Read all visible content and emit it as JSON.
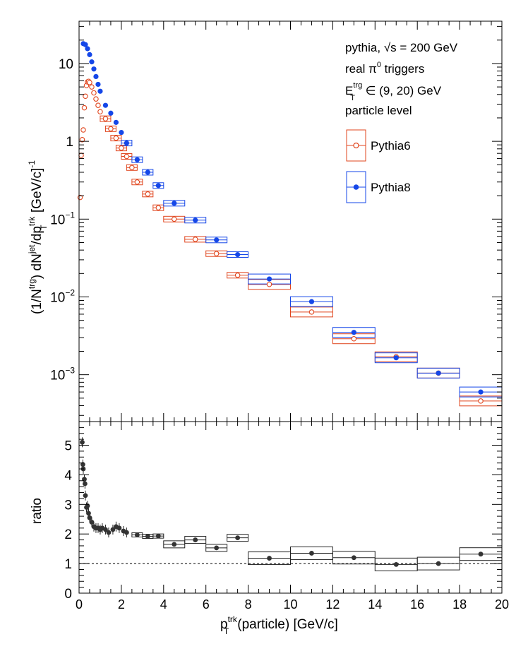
{
  "legend_text": {
    "line1_pre": "pythia, ",
    "line1_sqrt": "√s",
    "line1_post": " = 200 GeV",
    "line2_pre": "real π",
    "line2_sup": "0",
    "line2_post": " triggers",
    "line3_E": "E",
    "line3_sub": "T",
    "line3_sup": "trg",
    "line3_post": " ∈ (9, 20) GeV",
    "line4": "particle level"
  },
  "axis_text": {
    "xlabel_p": "p",
    "xlabel_sup": "trk",
    "xlabel_sub": "T",
    "xlabel_post": "(particle) [GeV/c]",
    "ylabel_top": "(1/N^{trg}) dN^{jet}/dp_{T}^{trk} [GeV/c]^{-1}",
    "ylabel_bottom": "ratio"
  },
  "colors": {
    "pythia6": "#e0441c",
    "pythia8": "#1547e8",
    "ratio": "#333333"
  },
  "chart_data": [
    {
      "type": "scatter",
      "panel": "spectrum",
      "log_y": true,
      "xlim": [
        0,
        20
      ],
      "ylim": [
        0.00025,
        35
      ],
      "y_ticks": [
        {
          "value": 0.001,
          "label": "10",
          "sup": "−3"
        },
        {
          "value": 0.01,
          "label": "10",
          "sup": "−2"
        },
        {
          "value": 0.1,
          "label": "10",
          "sup": "−1"
        },
        {
          "value": 1,
          "label": "1",
          "sup": ""
        },
        {
          "value": 10,
          "label": "10",
          "sup": ""
        }
      ],
      "series": [
        {
          "name": "Pythia6",
          "marker": "open-circle",
          "points": [
            {
              "x": 0.05,
              "y": 0.19,
              "xw": 0.05
            },
            {
              "x": 0.1,
              "y": 0.66,
              "xw": 0.05
            },
            {
              "x": 0.15,
              "y": 1.05,
              "xw": 0.05
            },
            {
              "x": 0.2,
              "y": 1.4,
              "xw": 0.05
            },
            {
              "x": 0.25,
              "y": 2.7,
              "xw": 0.05
            },
            {
              "x": 0.3,
              "y": 3.8,
              "xw": 0.05
            },
            {
              "x": 0.35,
              "y": 5.2,
              "xw": 0.05
            },
            {
              "x": 0.4,
              "y": 5.8,
              "xw": 0.05
            },
            {
              "x": 0.45,
              "y": 5.9,
              "xw": 0.05
            },
            {
              "x": 0.5,
              "y": 5.7,
              "xw": 0.05
            },
            {
              "x": 0.6,
              "y": 5.0,
              "xw": 0.1
            },
            {
              "x": 0.7,
              "y": 4.2,
              "xw": 0.1
            },
            {
              "x": 0.8,
              "y": 3.5,
              "xw": 0.1
            },
            {
              "x": 0.9,
              "y": 2.9,
              "xw": 0.1
            },
            {
              "x": 1.0,
              "y": 2.4,
              "xw": 0.1
            },
            {
              "x": 1.25,
              "y": 1.95,
              "xw": 0.25
            },
            {
              "x": 1.5,
              "y": 1.45,
              "xw": 0.25
            },
            {
              "x": 1.75,
              "y": 1.1,
              "xw": 0.25
            },
            {
              "x": 2.0,
              "y": 0.82,
              "xw": 0.25
            },
            {
              "x": 2.25,
              "y": 0.64,
              "xw": 0.25
            },
            {
              "x": 2.5,
              "y": 0.46,
              "xw": 0.25
            },
            {
              "x": 2.75,
              "y": 0.3,
              "xw": 0.25
            },
            {
              "x": 3.25,
              "y": 0.21,
              "xw": 0.25
            },
            {
              "x": 3.75,
              "y": 0.14,
              "xw": 0.25
            },
            {
              "x": 4.5,
              "y": 0.1,
              "xw": 0.5
            },
            {
              "x": 5.5,
              "y": 0.055,
              "xw": 0.5
            },
            {
              "x": 6.5,
              "y": 0.036,
              "xw": 0.5
            },
            {
              "x": 7.5,
              "y": 0.019,
              "xw": 0.5
            },
            {
              "x": 9.0,
              "y": 0.0145,
              "xw": 1.0
            },
            {
              "x": 11.0,
              "y": 0.0064,
              "xw": 1.0
            },
            {
              "x": 13.0,
              "y": 0.0029,
              "xw": 1.0
            },
            {
              "x": 15.0,
              "y": 0.0017,
              "xw": 1.0
            },
            {
              "x": 17.0,
              "y": 0.00105,
              "xw": 1.0
            },
            {
              "x": 19.0,
              "y": 0.00046,
              "xw": 1.0
            }
          ]
        },
        {
          "name": "Pythia8",
          "marker": "filled-circle",
          "points": [
            {
              "x": 0.2,
              "y": 18.0,
              "xw": 0.05
            },
            {
              "x": 0.3,
              "y": 17.5,
              "xw": 0.05
            },
            {
              "x": 0.4,
              "y": 15.5,
              "xw": 0.05
            },
            {
              "x": 0.5,
              "y": 13.0,
              "xw": 0.05
            },
            {
              "x": 0.6,
              "y": 10.5,
              "xw": 0.05
            },
            {
              "x": 0.7,
              "y": 8.5,
              "xw": 0.05
            },
            {
              "x": 0.8,
              "y": 6.8,
              "xw": 0.05
            },
            {
              "x": 0.9,
              "y": 5.4,
              "xw": 0.05
            },
            {
              "x": 1.0,
              "y": 4.4,
              "xw": 0.05
            },
            {
              "x": 1.25,
              "y": 2.9,
              "xw": 0.1
            },
            {
              "x": 1.5,
              "y": 2.3,
              "xw": 0.1
            },
            {
              "x": 1.75,
              "y": 1.75,
              "xw": 0.1
            },
            {
              "x": 2.0,
              "y": 1.3,
              "xw": 0.1
            },
            {
              "x": 2.25,
              "y": 0.95,
              "xw": 0.25
            },
            {
              "x": 2.75,
              "y": 0.58,
              "xw": 0.25
            },
            {
              "x": 3.25,
              "y": 0.4,
              "xw": 0.25
            },
            {
              "x": 3.75,
              "y": 0.27,
              "xw": 0.25
            },
            {
              "x": 4.5,
              "y": 0.16,
              "xw": 0.5
            },
            {
              "x": 5.5,
              "y": 0.097,
              "xw": 0.5
            },
            {
              "x": 6.5,
              "y": 0.054,
              "xw": 0.5
            },
            {
              "x": 7.5,
              "y": 0.035,
              "xw": 0.5
            },
            {
              "x": 9.0,
              "y": 0.017,
              "xw": 1.0
            },
            {
              "x": 11.0,
              "y": 0.0087,
              "xw": 1.0
            },
            {
              "x": 13.0,
              "y": 0.0035,
              "xw": 1.0
            },
            {
              "x": 15.0,
              "y": 0.00165,
              "xw": 1.0
            },
            {
              "x": 17.0,
              "y": 0.00105,
              "xw": 1.0
            },
            {
              "x": 19.0,
              "y": 0.0006,
              "xw": 1.0
            }
          ]
        }
      ]
    },
    {
      "type": "scatter",
      "panel": "ratio",
      "xlim": [
        0,
        20
      ],
      "ylim": [
        0,
        5.8
      ],
      "x_ticks": [
        0,
        2,
        4,
        6,
        8,
        10,
        12,
        14,
        16,
        18,
        20
      ],
      "y_ticks": [
        0,
        1,
        2,
        3,
        4,
        5
      ],
      "reference_line": 1,
      "points": [
        {
          "x": 0.15,
          "y": 5.1,
          "xw": 0.05
        },
        {
          "x": 0.18,
          "y": 4.35,
          "xw": 0.05
        },
        {
          "x": 0.2,
          "y": 4.2,
          "xw": 0.05
        },
        {
          "x": 0.25,
          "y": 3.85,
          "xw": 0.05
        },
        {
          "x": 0.28,
          "y": 3.7,
          "xw": 0.05
        },
        {
          "x": 0.3,
          "y": 3.3,
          "xw": 0.05
        },
        {
          "x": 0.35,
          "y": 2.9,
          "xw": 0.05
        },
        {
          "x": 0.4,
          "y": 2.95,
          "xw": 0.05
        },
        {
          "x": 0.45,
          "y": 2.7,
          "xw": 0.05
        },
        {
          "x": 0.5,
          "y": 2.55,
          "xw": 0.05
        },
        {
          "x": 0.6,
          "y": 2.4,
          "xw": 0.05
        },
        {
          "x": 0.7,
          "y": 2.25,
          "xw": 0.05
        },
        {
          "x": 0.8,
          "y": 2.2,
          "xw": 0.05
        },
        {
          "x": 0.9,
          "y": 2.2,
          "xw": 0.05
        },
        {
          "x": 1.0,
          "y": 2.15,
          "xw": 0.05
        },
        {
          "x": 1.1,
          "y": 2.2,
          "xw": 0.05
        },
        {
          "x": 1.25,
          "y": 2.15,
          "xw": 0.1
        },
        {
          "x": 1.4,
          "y": 2.05,
          "xw": 0.1
        },
        {
          "x": 1.6,
          "y": 2.15,
          "xw": 0.1
        },
        {
          "x": 1.75,
          "y": 2.25,
          "xw": 0.1
        },
        {
          "x": 1.9,
          "y": 2.2,
          "xw": 0.1
        },
        {
          "x": 2.1,
          "y": 2.1,
          "xw": 0.1
        },
        {
          "x": 2.25,
          "y": 2.05,
          "xw": 0.1
        },
        {
          "x": 2.75,
          "y": 1.97,
          "xw": 0.25
        },
        {
          "x": 3.25,
          "y": 1.92,
          "xw": 0.25
        },
        {
          "x": 3.75,
          "y": 1.93,
          "xw": 0.25
        },
        {
          "x": 4.5,
          "y": 1.65,
          "xw": 0.5
        },
        {
          "x": 5.5,
          "y": 1.8,
          "xw": 0.5
        },
        {
          "x": 6.5,
          "y": 1.53,
          "xw": 0.5
        },
        {
          "x": 7.5,
          "y": 1.87,
          "xw": 0.5
        },
        {
          "x": 9.0,
          "y": 1.18,
          "xw": 1.0
        },
        {
          "x": 11.0,
          "y": 1.35,
          "xw": 1.0
        },
        {
          "x": 13.0,
          "y": 1.2,
          "xw": 1.0
        },
        {
          "x": 15.0,
          "y": 0.97,
          "xw": 1.0
        },
        {
          "x": 17.0,
          "y": 1.0,
          "xw": 1.0
        },
        {
          "x": 19.0,
          "y": 1.32,
          "xw": 1.0
        }
      ]
    }
  ]
}
